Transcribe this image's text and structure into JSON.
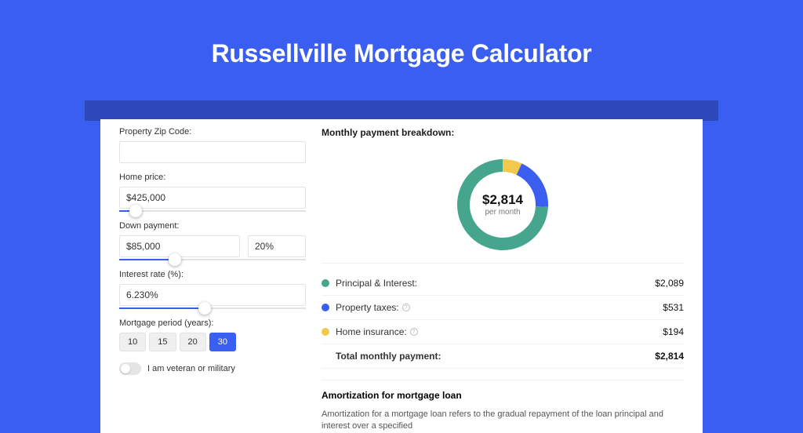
{
  "colors": {
    "page_bg": "#3a5ef0",
    "stripe": "#2d48b8",
    "card_bg": "#ffffff",
    "text": "#333333",
    "muted": "#777777",
    "border": "#e3e3e3",
    "accent": "#3a5ef0"
  },
  "header": {
    "title": "Russellville Mortgage Calculator"
  },
  "form": {
    "zip": {
      "label": "Property Zip Code:",
      "value": ""
    },
    "price": {
      "label": "Home price:",
      "value": "$425,000",
      "slider_pct": 9
    },
    "down": {
      "label": "Down payment:",
      "value": "$85,000",
      "pct": "20%",
      "slider_pct": 30
    },
    "rate": {
      "label": "Interest rate (%):",
      "value": "6.230%",
      "slider_pct": 46
    },
    "term": {
      "label": "Mortgage period (years):",
      "options": [
        "10",
        "15",
        "20",
        "30"
      ],
      "selected": "30"
    },
    "veteran": {
      "label": "I am veteran or military",
      "on": false
    }
  },
  "breakdown": {
    "title": "Monthly payment breakdown:",
    "center_amount": "$2,814",
    "center_sub": "per month",
    "donut": {
      "type": "donut",
      "stroke_width": 16,
      "segments": [
        {
          "key": "pi",
          "label": "Principal & Interest:",
          "amount": "$2,089",
          "value": 2089,
          "color": "#45a68d"
        },
        {
          "key": "tax",
          "label": "Property taxes:",
          "amount": "$531",
          "value": 531,
          "color": "#3a5ef0",
          "info": true
        },
        {
          "key": "ins",
          "label": "Home insurance:",
          "amount": "$194",
          "value": 194,
          "color": "#f2c94c",
          "info": true
        }
      ]
    },
    "total": {
      "label": "Total monthly payment:",
      "amount": "$2,814"
    }
  },
  "amortization": {
    "title": "Amortization for mortgage loan",
    "text": "Amortization for a mortgage loan refers to the gradual repayment of the loan principal and interest over a specified"
  }
}
